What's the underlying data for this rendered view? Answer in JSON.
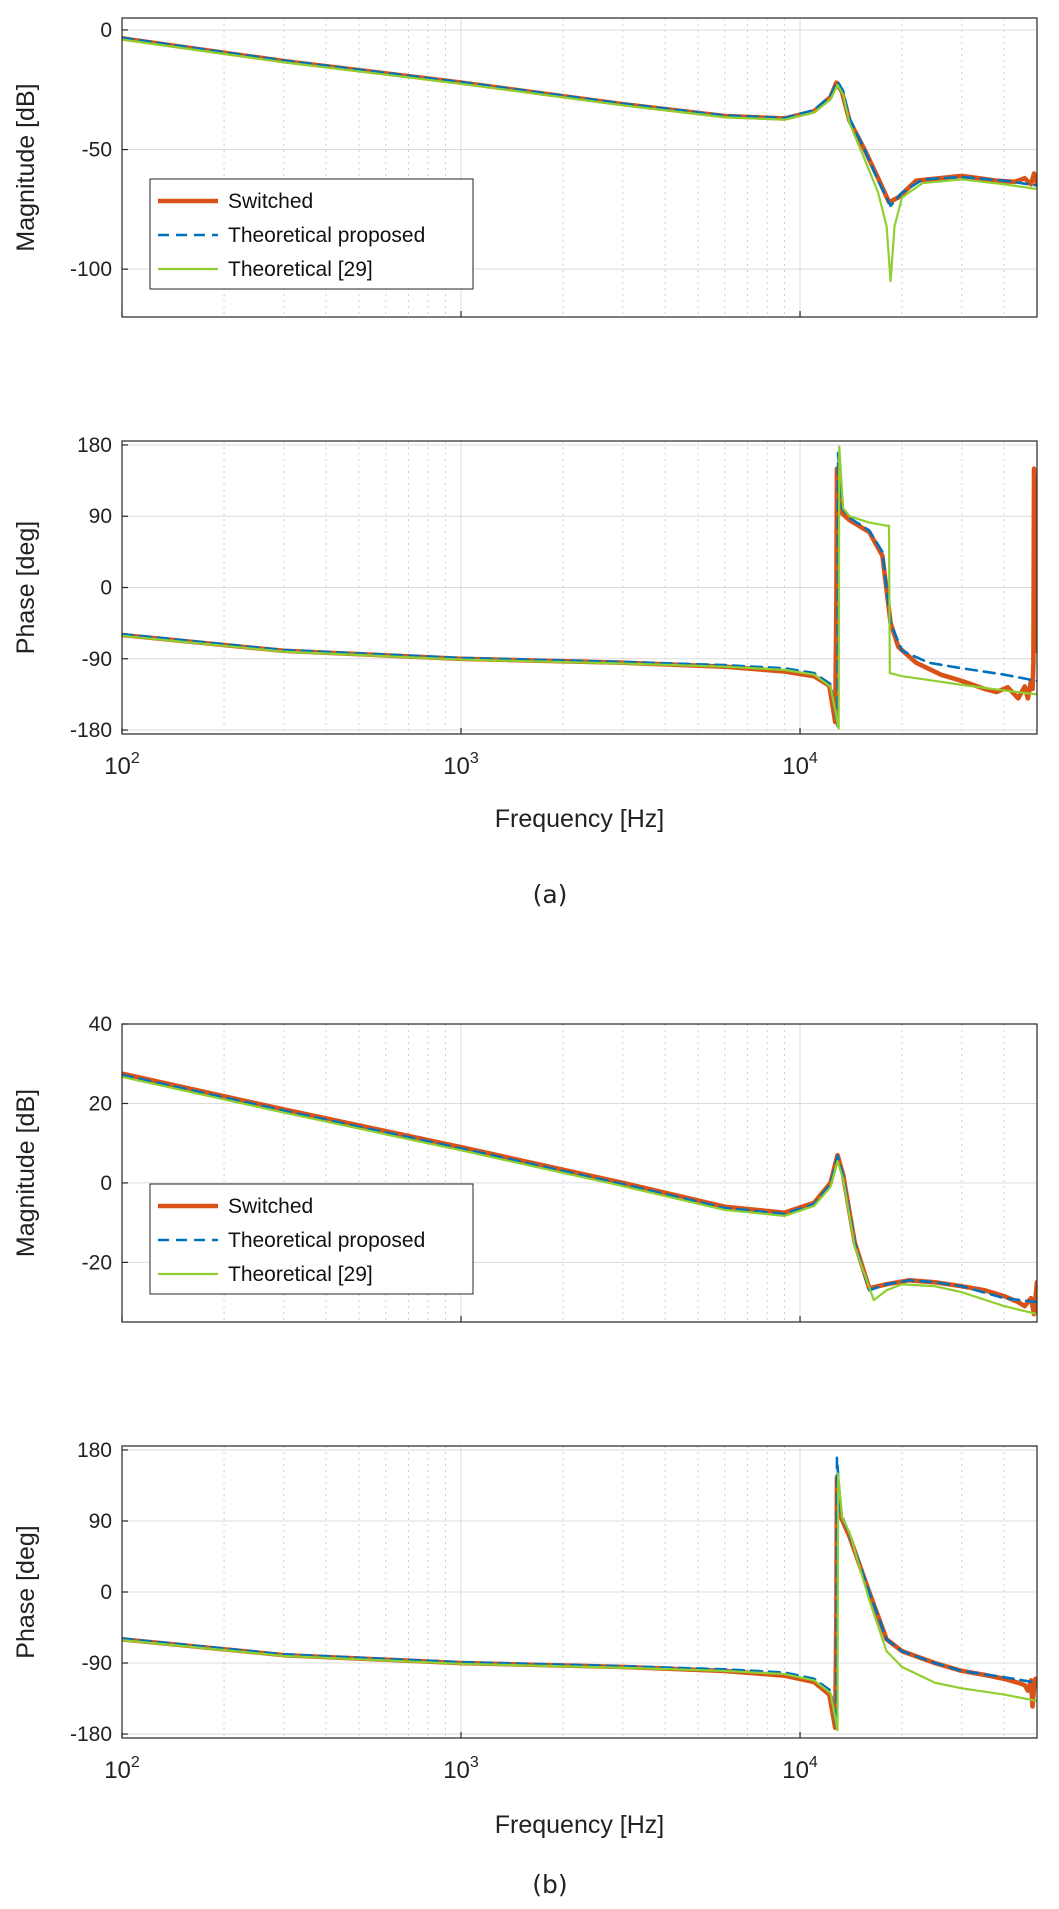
{
  "chart_data": [
    {
      "id": "a",
      "caption": "(a)",
      "xlabel": "Frequency [Hz]",
      "x_scale": "log",
      "xlim": [
        100,
        50000
      ],
      "x_ticks": [
        {
          "value": 100,
          "base": "10",
          "exp": "2"
        },
        {
          "value": 1000,
          "base": "10",
          "exp": "3"
        },
        {
          "value": 10000,
          "base": "10",
          "exp": "4"
        }
      ],
      "legend_entries": [
        "Switched",
        "Theoretical proposed",
        "Theoretical [29]"
      ],
      "series_colors": {
        "switched": "#d95319",
        "proposed": "#0072bd",
        "ref29": "#8fcf2f"
      },
      "panels": [
        {
          "type": "line",
          "ylabel": "Magnitude [dB]",
          "ylim": [
            -120,
            5
          ],
          "yticks": [
            0,
            -50,
            -100
          ],
          "ytick_labels": [
            "0",
            "-50",
            "-100"
          ],
          "legend": true,
          "series": [
            {
              "name": "Switched",
              "key": "switched",
              "x": [
                100,
                300,
                1000,
                3000,
                6000,
                9000,
                11000,
                12300,
                12800,
                13300,
                14000,
                15500,
                17000,
                18300,
                19500,
                22000,
                30000,
                38000,
                43000,
                46000,
                48000,
                49000,
                50000
              ],
              "y": [
                -3.5,
                -13,
                -22,
                -31,
                -36,
                -37,
                -34,
                -28,
                -22,
                -26,
                -38,
                -50,
                -62,
                -72,
                -70,
                -63,
                -61,
                -63,
                -63.5,
                -62,
                -64.5,
                -60,
                -64.5
              ]
            },
            {
              "name": "Theoretical proposed",
              "key": "proposed",
              "x": [
                100,
                300,
                1000,
                3000,
                6000,
                9000,
                11000,
                12300,
                12900,
                13400,
                14000,
                15500,
                17000,
                18500,
                20000,
                23000,
                30000,
                40000,
                50000
              ],
              "y": [
                -3.3,
                -12.8,
                -21.8,
                -30.8,
                -35.8,
                -36.8,
                -33.5,
                -27.5,
                -21.5,
                -25.5,
                -37,
                -50,
                -63,
                -73.5,
                -68,
                -62.5,
                -61.5,
                -63,
                -65
              ]
            },
            {
              "name": "Theoretical [29]",
              "key": "ref29",
              "x": [
                100,
                300,
                1000,
                3000,
                6000,
                9000,
                11000,
                12300,
                12900,
                13400,
                14000,
                15500,
                17000,
                18000,
                18500,
                19000,
                20000,
                23000,
                30000,
                40000,
                50000
              ],
              "y": [
                -4,
                -13.5,
                -22.5,
                -31.5,
                -36.5,
                -37.5,
                -34.5,
                -29,
                -23,
                -27,
                -39,
                -54,
                -68,
                -82,
                -105,
                -82,
                -70,
                -64,
                -62.5,
                -64.5,
                -66.5
              ]
            }
          ]
        },
        {
          "type": "line",
          "ylabel": "Phase [deg]",
          "ylim": [
            -185,
            185
          ],
          "yticks": [
            180,
            90,
            0,
            -90,
            -180
          ],
          "ytick_labels": [
            "180",
            "90",
            "0",
            "-90",
            "-180"
          ],
          "legend": false,
          "series": [
            {
              "name": "Switched",
              "key": "switched",
              "x": [
                100,
                300,
                1000,
                3000,
                6000,
                9000,
                11000,
                12200,
                12700,
                12800,
                12850,
                13200,
                14000,
                16000,
                17500,
                18500,
                19500,
                22000,
                26000,
                30000,
                35000,
                38000,
                41000,
                44000,
                46000,
                47000,
                48000,
                48500,
                48800,
                49000,
                49200,
                49500,
                50000
              ],
              "y": [
                -60,
                -80,
                -90,
                -95,
                -100,
                -106,
                -112,
                -124,
                -170,
                -20,
                150,
                95,
                85,
                70,
                40,
                -45,
                -75,
                -95,
                -110,
                -118,
                -128,
                -132,
                -126,
                -140,
                -125,
                -140,
                -118,
                -128,
                -95,
                150,
                -60,
                140,
                -80
              ]
            },
            {
              "name": "Theoretical proposed",
              "key": "proposed",
              "x": [
                100,
                300,
                1000,
                3000,
                6000,
                9000,
                11000,
                12300,
                12900,
                12950,
                13300,
                14000,
                16000,
                17500,
                18500,
                20000,
                24000,
                30000,
                40000,
                50000
              ],
              "y": [
                -59,
                -79,
                -89,
                -94,
                -98,
                -102,
                -108,
                -122,
                -175,
                170,
                100,
                88,
                72,
                45,
                -45,
                -80,
                -95,
                -102,
                -110,
                -118
              ]
            },
            {
              "name": "Theoretical [29]",
              "key": "ref29",
              "x": [
                100,
                300,
                1000,
                3000,
                6000,
                9000,
                11000,
                12300,
                13000,
                13050,
                13400,
                14000,
                16000,
                18000,
                18300,
                18400,
                20000,
                25000,
                30000,
                40000,
                50000
              ],
              "y": [
                -61,
                -81,
                -91,
                -96,
                -100,
                -104,
                -110,
                -125,
                -178,
                178,
                100,
                90,
                82,
                78,
                78,
                -108,
                -112,
                -118,
                -123,
                -130,
                -135
              ]
            }
          ]
        }
      ]
    },
    {
      "id": "b",
      "caption": "(b)",
      "xlabel": "Frequency [Hz]",
      "x_scale": "log",
      "xlim": [
        100,
        50000
      ],
      "x_ticks": [
        {
          "value": 100,
          "base": "10",
          "exp": "2"
        },
        {
          "value": 1000,
          "base": "10",
          "exp": "3"
        },
        {
          "value": 10000,
          "base": "10",
          "exp": "4"
        }
      ],
      "legend_entries": [
        "Switched",
        "Theoretical proposed",
        "Theoretical [29]"
      ],
      "series_colors": {
        "switched": "#d95319",
        "proposed": "#0072bd",
        "ref29": "#8fcf2f"
      },
      "panels": [
        {
          "type": "line",
          "ylabel": "Magnitude [dB]",
          "ylim": [
            -35,
            40
          ],
          "yticks": [
            40,
            20,
            0,
            -20
          ],
          "ytick_labels": [
            "40",
            "20",
            "0",
            "-20"
          ],
          "legend": true,
          "series": [
            {
              "name": "Switched",
              "key": "switched",
              "x": [
                100,
                300,
                1000,
                3000,
                6000,
                9000,
                11000,
                12300,
                12900,
                13400,
                14500,
                16000,
                18000,
                21000,
                25000,
                30000,
                35000,
                40000,
                44000,
                46000,
                48000,
                49000,
                50000
              ],
              "y": [
                27.5,
                18.5,
                9,
                0,
                -6,
                -7.5,
                -5,
                0,
                7,
                2,
                -15,
                -26.5,
                -25.5,
                -24.5,
                -25,
                -26,
                -27,
                -28.5,
                -30,
                -31,
                -29,
                -33,
                -25
              ]
            },
            {
              "name": "Theoretical proposed",
              "key": "proposed",
              "x": [
                100,
                300,
                1000,
                3000,
                6000,
                9000,
                11000,
                12300,
                12900,
                13400,
                14500,
                16000,
                18000,
                21000,
                25000,
                30000,
                40000,
                50000
              ],
              "y": [
                27.2,
                18.2,
                8.7,
                -0.3,
                -6.3,
                -7.8,
                -5.3,
                -0.3,
                6.8,
                1.8,
                -15,
                -27,
                -25.5,
                -24.5,
                -25,
                -26,
                -29,
                -30
              ]
            },
            {
              "name": "Theoretical [29]",
              "key": "ref29",
              "x": [
                100,
                300,
                1000,
                3000,
                6000,
                9000,
                11000,
                12300,
                12900,
                13400,
                14500,
                16500,
                18000,
                20000,
                25000,
                30000,
                40000,
                50000
              ],
              "y": [
                26.7,
                17.7,
                8.2,
                -0.8,
                -6.8,
                -8.3,
                -5.8,
                -1,
                5.5,
                1,
                -16,
                -29.5,
                -27,
                -25.5,
                -26,
                -27.5,
                -31,
                -33
              ]
            }
          ]
        },
        {
          "type": "line",
          "ylabel": "Phase [deg]",
          "ylim": [
            -185,
            185
          ],
          "yticks": [
            180,
            90,
            0,
            -90,
            -180
          ],
          "ytick_labels": [
            "180",
            "90",
            "0",
            "-90",
            "-180"
          ],
          "legend": false,
          "series": [
            {
              "name": "Switched",
              "key": "switched",
              "x": [
                100,
                300,
                1000,
                3000,
                6000,
                9000,
                11000,
                12200,
                12700,
                12800,
                12850,
                13200,
                14000,
                16000,
                18000,
                20000,
                25000,
                30000,
                35000,
                40000,
                44000,
                46000,
                47000,
                48000,
                48500,
                49000,
                49500,
                50000
              ],
              "y": [
                -60,
                -80,
                -90,
                -95,
                -100,
                -106,
                -114,
                -130,
                -172,
                -30,
                145,
                95,
                70,
                0,
                -60,
                -75,
                -90,
                -100,
                -105,
                -110,
                -115,
                -118,
                -125,
                -112,
                -145,
                -120,
                -110,
                -120
              ]
            },
            {
              "name": "Theoretical proposed",
              "key": "proposed",
              "x": [
                100,
                300,
                1000,
                3000,
                6000,
                9000,
                11000,
                12300,
                12800,
                12850,
                13200,
                14000,
                16000,
                18000,
                20000,
                25000,
                30000,
                40000,
                50000
              ],
              "y": [
                -59,
                -79,
                -89,
                -94,
                -98,
                -102,
                -110,
                -125,
                -170,
                170,
                100,
                72,
                0,
                -60,
                -75,
                -90,
                -100,
                -108,
                -115
              ]
            },
            {
              "name": "Theoretical [29]",
              "key": "ref29",
              "x": [
                100,
                300,
                1000,
                3000,
                6000,
                9000,
                11000,
                12300,
                12900,
                12950,
                13300,
                14000,
                16000,
                18000,
                20000,
                25000,
                30000,
                40000,
                50000
              ],
              "y": [
                -61,
                -81,
                -91,
                -96,
                -100,
                -104,
                -112,
                -128,
                -175,
                150,
                95,
                75,
                -10,
                -75,
                -95,
                -115,
                -122,
                -130,
                -138
              ]
            }
          ]
        }
      ]
    }
  ]
}
